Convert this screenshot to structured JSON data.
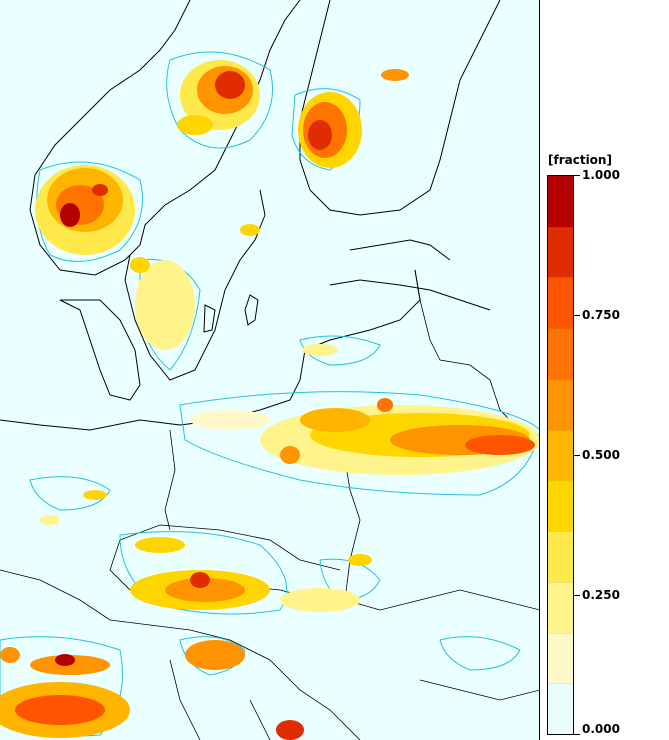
{
  "legend": {
    "unit_label": "[fraction]",
    "ticks": [
      {
        "value": 1.0,
        "label": "1.000"
      },
      {
        "value": 0.75,
        "label": "0.750"
      },
      {
        "value": 0.5,
        "label": "0.500"
      },
      {
        "value": 0.25,
        "label": "0.250"
      },
      {
        "value": 0.0,
        "label": "0.000"
      }
    ],
    "color_classes": [
      "#eafdfd",
      "#fff8c8",
      "#fff48c",
      "#ffe84a",
      "#ffd500",
      "#ffb400",
      "#ff9400",
      "#ff7400",
      "#ff5400",
      "#e02c00",
      "#b40000"
    ]
  },
  "map": {
    "background_color": "#eaffff",
    "coastline_color": "#000000",
    "contour_color": "#28c0d8"
  }
}
